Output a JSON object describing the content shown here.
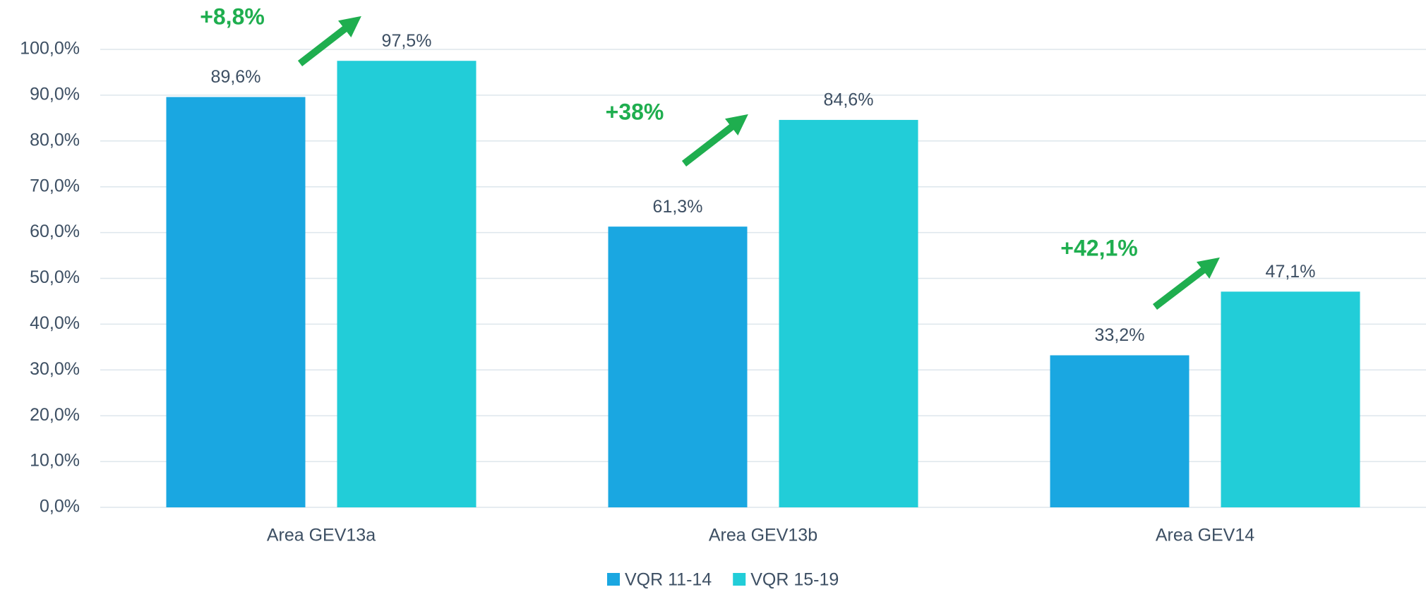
{
  "chart_data": {
    "type": "bar",
    "categories": [
      "Area GEV13a",
      "Area GEV13b",
      "Area GEV14"
    ],
    "series": [
      {
        "name": "VQR 11-14",
        "color": "#1aa7e1",
        "values": [
          89.6,
          61.3,
          33.2
        ],
        "value_labels": [
          "89,6%",
          "61,3%",
          "33,2%"
        ]
      },
      {
        "name": "VQR 15-19",
        "color": "#22cdd8",
        "values": [
          97.5,
          84.6,
          47.1
        ],
        "value_labels": [
          "97,5%",
          "84,6%",
          "47,1%"
        ]
      }
    ],
    "ylim": [
      0,
      100
    ],
    "yticks": [
      {
        "value": 0,
        "label": "0,0%"
      },
      {
        "value": 10,
        "label": "10,0%"
      },
      {
        "value": 20,
        "label": "20,0%"
      },
      {
        "value": 30,
        "label": "30,0%"
      },
      {
        "value": 40,
        "label": "40,0%"
      },
      {
        "value": 50,
        "label": "50,0%"
      },
      {
        "value": 60,
        "label": "60,0%"
      },
      {
        "value": 70,
        "label": "70,0%"
      },
      {
        "value": 80,
        "label": "80,0%"
      },
      {
        "value": 90,
        "label": "90,0%"
      },
      {
        "value": 100,
        "label": "100,0%"
      }
    ],
    "grid": true,
    "legend": "bottom",
    "annotations": [
      "+8,8%",
      "+38%",
      "+42,1%"
    ]
  }
}
